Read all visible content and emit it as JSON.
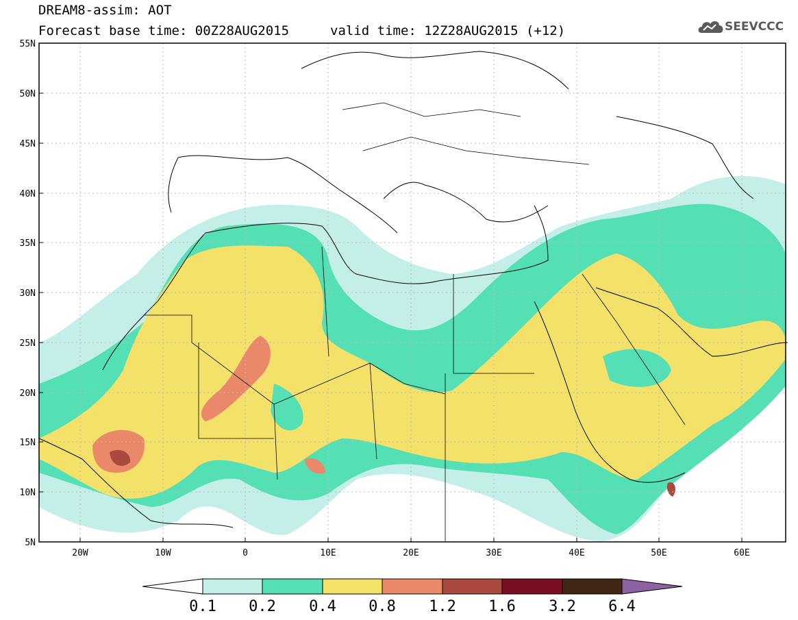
{
  "header": {
    "title": "DREAM8-assim: AOT",
    "base_time": "Forecast base time: 00Z28AUG2015",
    "valid_time": "valid time: 12Z28AUG2015 (+12)"
  },
  "logo": {
    "text": "SEEVCCC",
    "icon": "cloud-icon"
  },
  "map": {
    "lon_range": [
      -25,
      65
    ],
    "lat_range": [
      5,
      55
    ],
    "lon_ticks": [
      "20W",
      "10W",
      "0",
      "10E",
      "20E",
      "30E",
      "40E",
      "50E",
      "60E"
    ],
    "lat_ticks": [
      "55N",
      "50N",
      "45N",
      "40N",
      "35N",
      "30N",
      "25N",
      "20N",
      "15N",
      "10N",
      "5N"
    ],
    "grid": true
  },
  "colorbar": {
    "labels": [
      "0.1",
      "0.2",
      "0.4",
      "0.8",
      "1.2",
      "1.6",
      "3.2",
      "6.4"
    ],
    "colors": [
      "#ffffff",
      "#c4efe9",
      "#55dfb4",
      "#f4e16a",
      "#e9896a",
      "#a94a3c",
      "#7a0f24",
      "#3f2815",
      "#8d62a2"
    ]
  },
  "chart_data": {
    "type": "heatmap",
    "title": "DREAM8-assim: AOT",
    "variable": "AOT",
    "levels": [
      0.1,
      0.2,
      0.4,
      0.8,
      1.2,
      1.6,
      3.2,
      6.4
    ],
    "xlim": [
      -25,
      65
    ],
    "ylim": [
      5,
      55
    ],
    "xlabel": "",
    "ylabel": ""
  }
}
